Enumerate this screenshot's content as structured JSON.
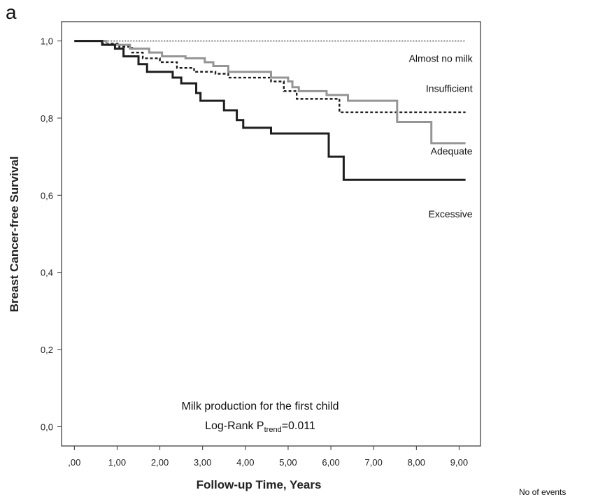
{
  "panel_letter": "a",
  "footer_note": "No of events",
  "chart_data": {
    "type": "line",
    "title": "",
    "xlabel": "Follow-up Time, Years",
    "ylabel": "Breast Cancer-free Survival",
    "xlim": [
      -0.3,
      9.5
    ],
    "ylim": [
      -0.05,
      1.05
    ],
    "x_ticks": [
      {
        "value": 0,
        "label": ",00"
      },
      {
        "value": 1,
        "label": "1,00"
      },
      {
        "value": 2,
        "label": "2,00"
      },
      {
        "value": 3,
        "label": "3,00"
      },
      {
        "value": 4,
        "label": "4,00"
      },
      {
        "value": 5,
        "label": "5,00"
      },
      {
        "value": 6,
        "label": "6,00"
      },
      {
        "value": 7,
        "label": "7,00"
      },
      {
        "value": 8,
        "label": "8,00"
      },
      {
        "value": 9,
        "label": "9,00"
      }
    ],
    "y_ticks": [
      {
        "value": 0.0,
        "label": "0,0"
      },
      {
        "value": 0.2,
        "label": "0,2"
      },
      {
        "value": 0.4,
        "label": "0,4"
      },
      {
        "value": 0.6,
        "label": "0,6"
      },
      {
        "value": 0.8,
        "label": "0,8"
      },
      {
        "value": 1.0,
        "label": "1,0"
      }
    ],
    "grid": false,
    "annotation_lines": [
      "Milk production for the first child",
      "Log-Rank P",
      "trend",
      "=0.011"
    ],
    "series": [
      {
        "name": "Almost no milk",
        "color": "#9a9a9a",
        "style": "dotted",
        "label_pos": {
          "x": 9.15,
          "y": 0.955
        },
        "steps": [
          [
            0,
            1.0
          ],
          [
            9.15,
            1.0
          ]
        ]
      },
      {
        "name": "Insufficient",
        "color": "#1a1a1a",
        "style": "dashed",
        "label_pos": {
          "x": 9.15,
          "y": 0.877
        },
        "steps": [
          [
            0,
            1.0
          ],
          [
            0.65,
            0.993
          ],
          [
            1.05,
            0.985
          ],
          [
            1.35,
            0.97
          ],
          [
            1.6,
            0.955
          ],
          [
            2.0,
            0.945
          ],
          [
            2.4,
            0.93
          ],
          [
            2.8,
            0.92
          ],
          [
            3.3,
            0.915
          ],
          [
            3.6,
            0.905
          ],
          [
            4.6,
            0.895
          ],
          [
            4.9,
            0.87
          ],
          [
            5.2,
            0.85
          ],
          [
            6.2,
            0.815
          ],
          [
            9.15,
            0.815
          ]
        ]
      },
      {
        "name": "Adequate",
        "color": "#959595",
        "style": "solid",
        "label_pos": {
          "x": 9.15,
          "y": 0.715
        },
        "steps": [
          [
            0,
            1.0
          ],
          [
            0.75,
            0.99
          ],
          [
            1.3,
            0.98
          ],
          [
            1.75,
            0.97
          ],
          [
            2.05,
            0.96
          ],
          [
            2.6,
            0.955
          ],
          [
            3.05,
            0.945
          ],
          [
            3.25,
            0.935
          ],
          [
            3.6,
            0.92
          ],
          [
            4.6,
            0.905
          ],
          [
            5.0,
            0.895
          ],
          [
            5.1,
            0.88
          ],
          [
            5.25,
            0.87
          ],
          [
            5.9,
            0.86
          ],
          [
            6.4,
            0.845
          ],
          [
            7.55,
            0.79
          ],
          [
            8.35,
            0.735
          ],
          [
            9.15,
            0.735
          ]
        ]
      },
      {
        "name": "Excessive",
        "color": "#1e1e1e",
        "style": "solid",
        "label_pos": {
          "x": 9.15,
          "y": 0.552
        },
        "steps": [
          [
            0,
            1.0
          ],
          [
            0.65,
            0.99
          ],
          [
            0.95,
            0.98
          ],
          [
            1.15,
            0.96
          ],
          [
            1.5,
            0.94
          ],
          [
            1.7,
            0.92
          ],
          [
            2.3,
            0.905
          ],
          [
            2.5,
            0.89
          ],
          [
            2.85,
            0.865
          ],
          [
            2.95,
            0.845
          ],
          [
            3.5,
            0.82
          ],
          [
            3.8,
            0.795
          ],
          [
            3.95,
            0.775
          ],
          [
            4.6,
            0.76
          ],
          [
            5.95,
            0.7
          ],
          [
            6.3,
            0.64
          ],
          [
            9.15,
            0.64
          ]
        ]
      }
    ]
  }
}
